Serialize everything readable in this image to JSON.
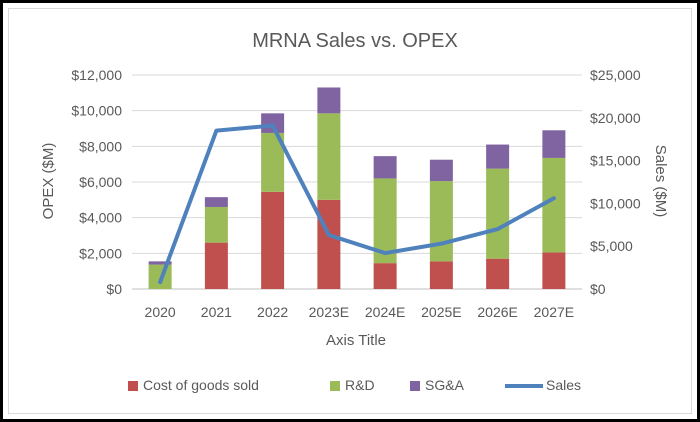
{
  "chart_data": {
    "type": "bar",
    "title": "MRNA Sales vs. OPEX",
    "xlabel": "Axis Title",
    "ylabel": "OPEX ($M)",
    "y2label": "Sales ($M)",
    "categories": [
      "2020",
      "2021",
      "2022",
      "2023E",
      "2024E",
      "2025E",
      "2026E",
      "2027E"
    ],
    "ylim": [
      0,
      12000
    ],
    "y2lim": [
      0,
      25000
    ],
    "yticks": [
      "$0",
      "$2,000",
      "$4,000",
      "$6,000",
      "$8,000",
      "$10,000",
      "$12,000"
    ],
    "y2ticks": [
      "$0",
      "$5,000",
      "$10,000",
      "$15,000",
      "$20,000",
      "$25,000"
    ],
    "grid": true,
    "legend_position": "bottom",
    "series": [
      {
        "name": "Cost of goods sold",
        "type": "bar",
        "color": "#c0504d",
        "values": [
          0,
          2600,
          5450,
          5000,
          1450,
          1550,
          1700,
          2050
        ]
      },
      {
        "name": "R&D",
        "type": "bar",
        "color": "#9bbb59",
        "values": [
          1370,
          2000,
          3300,
          4850,
          4750,
          4500,
          5050,
          5300
        ]
      },
      {
        "name": "SG&A",
        "type": "bar",
        "color": "#8064a2",
        "values": [
          180,
          550,
          1100,
          1450,
          1250,
          1200,
          1350,
          1550
        ]
      },
      {
        "name": "Sales",
        "type": "line",
        "axis": "secondary",
        "color": "#4f81bd",
        "values": [
          800,
          18500,
          19100,
          6300,
          4200,
          5300,
          7000,
          10600
        ]
      }
    ]
  }
}
